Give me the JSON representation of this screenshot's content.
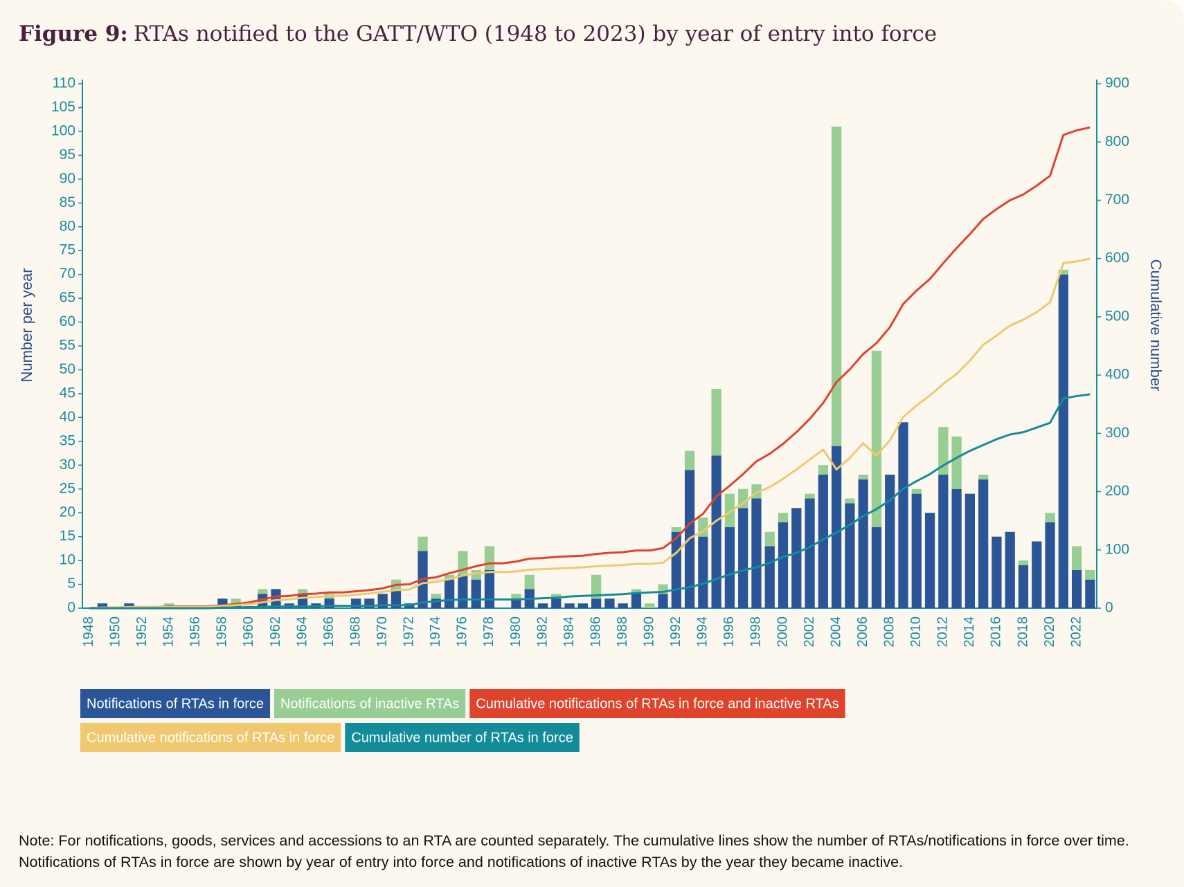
{
  "chart_data": {
    "type": "bar",
    "stacked": true,
    "title_label": "Figure 9:",
    "title": "RTAs notified to the GATT/WTO (1948 to 2023) by year of entry into force",
    "ylabel": "Number per year",
    "y2label": "Cumulative number",
    "note": "Note: For notifications, goods, services and accessions to an RTA are counted separately. The cumulative lines show the number of RTAs/notifications in force over time. Notifications of RTAs in force are shown by year of entry into force and notifications of inactive RTAs by the year they became inactive.",
    "categories": [
      "1948",
      null,
      "1950",
      null,
      "1952",
      null,
      "1954",
      null,
      "1956",
      null,
      "1958",
      null,
      "1960",
      null,
      "1962",
      null,
      "1964",
      null,
      "1966",
      null,
      "1968",
      null,
      "1970",
      null,
      "1972",
      null,
      "1974",
      null,
      "1976",
      null,
      "1978",
      null,
      "1980",
      null,
      "1982",
      null,
      "1984",
      null,
      "1986",
      null,
      "1988",
      null,
      "1990",
      null,
      "1992",
      null,
      "1994",
      null,
      "1996",
      null,
      "1998",
      null,
      "2000",
      null,
      "2002",
      null,
      "2004",
      null,
      "2006",
      null,
      "2008",
      null,
      "2010",
      null,
      "2012",
      null,
      "2014",
      null,
      "2016",
      null,
      "2018",
      null,
      "2020",
      null,
      "2022",
      null
    ],
    "series": [
      {
        "name": "Notifications of RTAs in force",
        "color": "#2a5597",
        "type": "bar",
        "values": [
          0,
          1,
          0,
          1,
          0,
          0,
          0,
          0,
          0,
          0,
          2,
          1,
          0,
          3,
          4,
          1,
          3,
          1,
          2,
          0,
          2,
          2,
          3,
          4,
          1,
          12,
          2,
          6,
          7,
          6,
          8,
          0,
          2,
          4,
          1,
          2,
          1,
          1,
          2,
          2,
          1,
          3,
          0,
          3,
          16,
          29,
          15,
          32,
          17,
          21,
          23,
          13,
          18,
          21,
          23,
          28,
          34,
          22,
          27,
          17,
          28,
          39,
          24,
          20,
          28,
          25,
          24,
          27,
          15,
          16,
          9,
          14,
          18,
          70,
          8,
          6
        ]
      },
      {
        "name": "Notifications of inactive RTAs",
        "color": "#98cd94",
        "type": "bar",
        "values": [
          0,
          0,
          0,
          0,
          0,
          0,
          1,
          0,
          0,
          0,
          0,
          1,
          0,
          1,
          0,
          0,
          1,
          0,
          1,
          0,
          0,
          0,
          0,
          2,
          0,
          3,
          1,
          1,
          5,
          2,
          5,
          0,
          1,
          3,
          0,
          1,
          0,
          0,
          5,
          0,
          0,
          1,
          1,
          2,
          1,
          4,
          4,
          14,
          7,
          4,
          3,
          3,
          2,
          0,
          1,
          2,
          67,
          1,
          1,
          37,
          0,
          0,
          1,
          0,
          10,
          11,
          0,
          1,
          0,
          0,
          1,
          0,
          2,
          1,
          5,
          2
        ]
      },
      {
        "name": "Cumulative notifications of RTAs in force and inactive RTAs",
        "color": "#e0432b",
        "type": "line",
        "axis": "y2",
        "values": [
          0,
          1,
          1,
          2,
          2,
          2,
          3,
          3,
          3,
          3,
          5,
          7,
          10,
          15,
          20,
          21,
          24,
          25,
          27,
          27,
          29,
          31,
          34,
          40,
          41,
          50,
          53,
          60,
          66,
          72,
          77,
          77,
          80,
          85,
          86,
          88,
          89,
          90,
          93,
          95,
          96,
          99,
          99,
          103,
          120,
          145,
          162,
          192,
          210,
          230,
          252,
          265,
          282,
          302,
          325,
          352,
          388,
          410,
          436,
          455,
          482,
          522,
          545,
          565,
          592,
          618,
          642,
          668,
          685,
          700,
          710,
          725,
          742,
          812,
          820,
          825
        ]
      },
      {
        "name": "Cumulative notifications of RTAs in force",
        "color": "#f0c870",
        "type": "line",
        "axis": "y2",
        "values": [
          0,
          1,
          1,
          2,
          2,
          2,
          2,
          2,
          2,
          2,
          4,
          5,
          7,
          10,
          14,
          15,
          18,
          19,
          21,
          21,
          23,
          25,
          28,
          31,
          32,
          43,
          45,
          50,
          56,
          60,
          62,
          62,
          63,
          66,
          67,
          68,
          69,
          70,
          72,
          73,
          74,
          76,
          76,
          78,
          95,
          120,
          132,
          150,
          165,
          180,
          198,
          208,
          222,
          238,
          255,
          272,
          238,
          258,
          283,
          262,
          288,
          328,
          348,
          365,
          385,
          402,
          425,
          452,
          468,
          485,
          495,
          508,
          525,
          592,
          595,
          600
        ]
      },
      {
        "name": "Cumulative number of RTAs in force",
        "color": "#138c9a",
        "type": "line",
        "axis": "y2",
        "values": [
          0,
          0,
          0,
          0,
          0,
          0,
          0,
          0,
          0,
          0,
          1,
          1,
          2,
          2,
          3,
          3,
          3,
          3,
          4,
          4,
          4,
          4,
          5,
          5,
          5,
          10,
          12,
          14,
          15,
          15,
          15,
          15,
          15,
          16,
          17,
          18,
          20,
          21,
          22,
          23,
          24,
          26,
          27,
          28,
          32,
          36,
          42,
          50,
          58,
          65,
          70,
          78,
          88,
          95,
          105,
          118,
          130,
          143,
          158,
          170,
          185,
          205,
          218,
          230,
          245,
          258,
          270,
          280,
          290,
          298,
          302,
          310,
          318,
          360,
          364,
          367
        ]
      }
    ],
    "ylim": [
      0,
      110
    ],
    "yticks": [
      0,
      5,
      10,
      15,
      20,
      25,
      30,
      35,
      40,
      45,
      50,
      55,
      60,
      65,
      70,
      75,
      80,
      85,
      90,
      95,
      100,
      105,
      110
    ],
    "y2lim": [
      0,
      900
    ],
    "y2ticks": [
      0,
      100,
      200,
      300,
      400,
      500,
      600,
      700,
      800,
      900
    ],
    "axis_color": "#1a8aa0"
  }
}
